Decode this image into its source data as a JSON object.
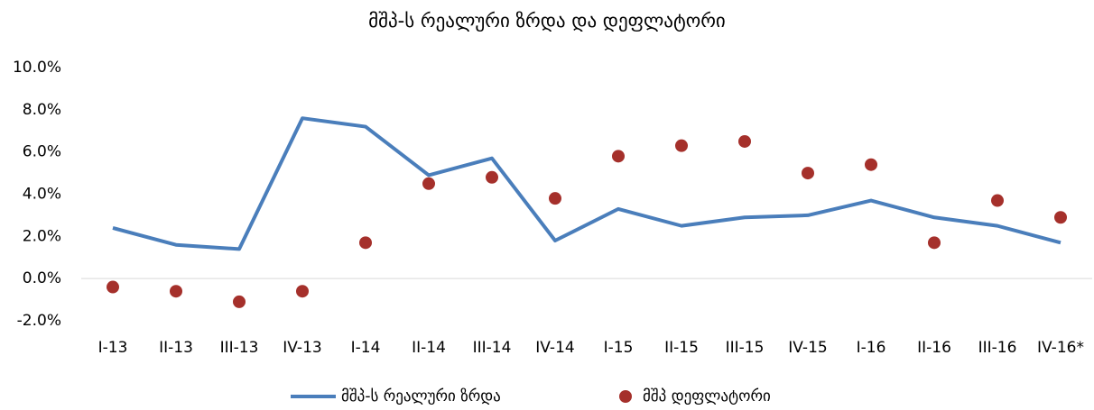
{
  "chart_data": {
    "type": "line",
    "title": "მშპ-ს რეალური ზრდა და დეფლატორი",
    "categories": [
      "I-13",
      "II-13",
      "III-13",
      "IV-13",
      "I-14",
      "II-14",
      "III-14",
      "IV-14",
      "I-15",
      "II-15",
      "III-15",
      "IV-15",
      "I-16",
      "II-16",
      "III-16",
      "IV-16*"
    ],
    "series": [
      {
        "name": "მშპ-ს რეალური ზრდა",
        "type": "line",
        "color": "#4a7ebb",
        "values": [
          2.4,
          1.6,
          1.4,
          7.6,
          7.2,
          4.9,
          5.7,
          1.8,
          3.3,
          2.5,
          2.9,
          3.0,
          3.7,
          2.9,
          2.5,
          1.7
        ]
      },
      {
        "name": "მშპ დეფლატორი",
        "type": "scatter",
        "color": "#a5302b",
        "values": [
          -0.4,
          -0.6,
          -1.1,
          -0.6,
          1.7,
          4.5,
          4.8,
          3.8,
          5.8,
          6.3,
          6.5,
          5.0,
          5.4,
          1.7,
          3.7,
          2.9
        ]
      }
    ],
    "ylim": [
      -2,
      10
    ],
    "yticks": [
      {
        "value": -2,
        "label": "-2.0%"
      },
      {
        "value": 0,
        "label": "0.0%"
      },
      {
        "value": 2,
        "label": "2.0%"
      },
      {
        "value": 4,
        "label": "4.0%"
      },
      {
        "value": 6,
        "label": "6.0%"
      },
      {
        "value": 8,
        "label": "8.0%"
      },
      {
        "value": 10,
        "label": "10.0%"
      }
    ],
    "grid": false,
    "legend": "bottom"
  }
}
